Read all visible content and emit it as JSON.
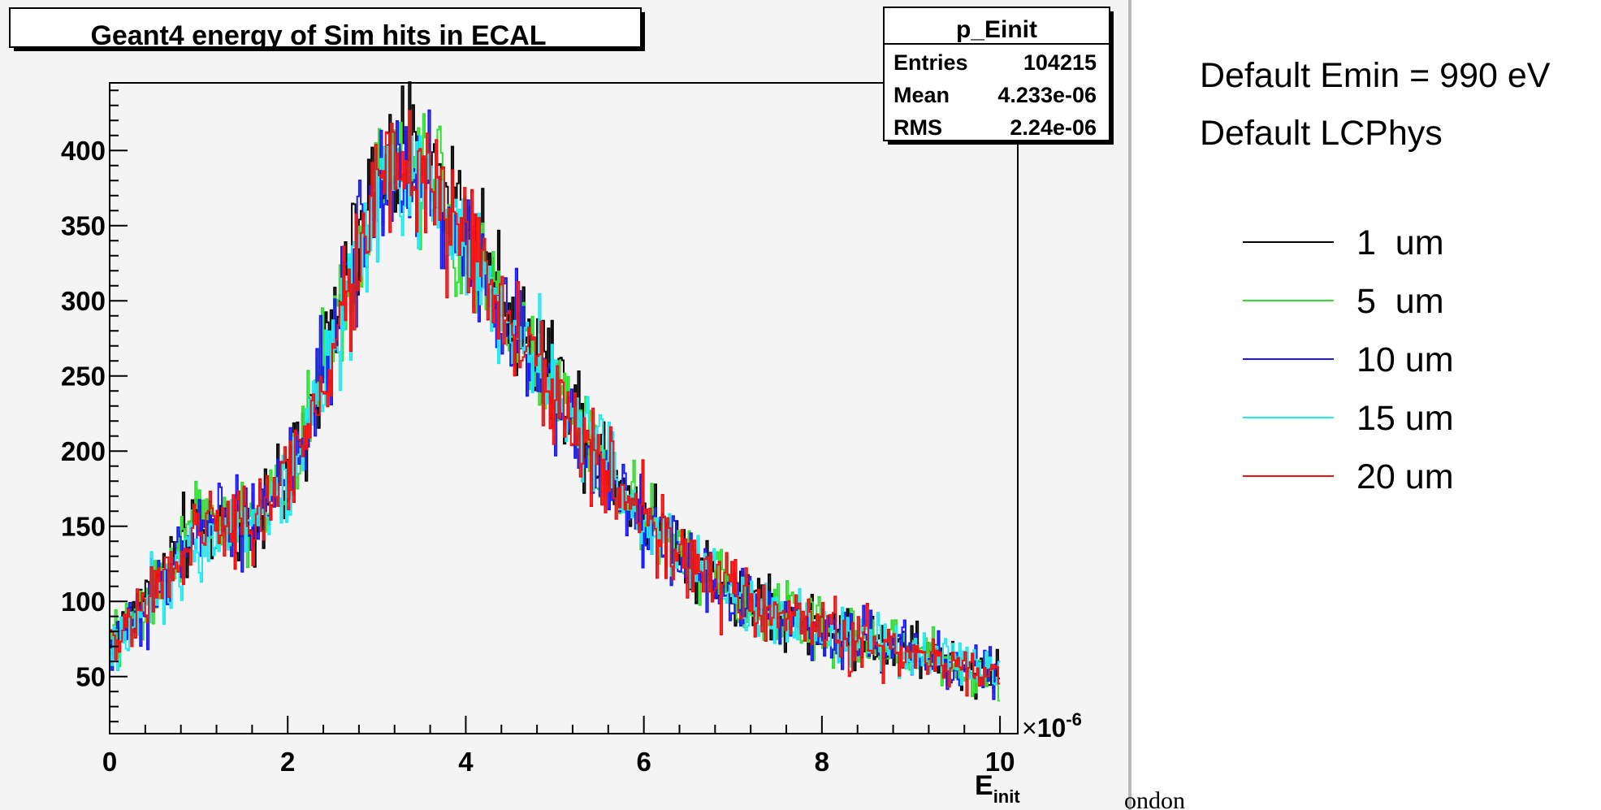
{
  "chart_data": {
    "type": "line",
    "title": "Geant4 energy of Sim hits in ECAL",
    "xlabel": "E",
    "xlabel_subscript": "init",
    "x_exponent_label": "10",
    "x_exponent_power": "-6",
    "xlim": [
      0,
      10.2
    ],
    "ylim": [
      12,
      445
    ],
    "x_ticks": [
      "0",
      "2",
      "4",
      "6",
      "8",
      "10"
    ],
    "y_ticks": [
      "50",
      "100",
      "150",
      "200",
      "250",
      "300",
      "350",
      "400"
    ],
    "grid": false,
    "stats_box": {
      "title": "p_Einit",
      "rows": [
        {
          "label": "Entries",
          "value": "104215"
        },
        {
          "label": "Mean",
          "value": "4.233e-06"
        },
        {
          "label": "RMS",
          "value": "2.24e-06"
        }
      ]
    },
    "x": [
      0,
      0.5,
      1,
      1.5,
      2,
      2.5,
      3,
      3.5,
      4,
      4.5,
      5,
      5.5,
      6,
      6.5,
      7,
      7.5,
      8,
      8.5,
      9,
      9.5,
      10
    ],
    "series": [
      {
        "name": "1  um",
        "color": "#000000",
        "values": [
          70,
          112,
          152,
          150,
          182,
          278,
          382,
          398,
          360,
          292,
          252,
          200,
          160,
          130,
          107,
          94,
          84,
          75,
          68,
          58,
          52
        ]
      },
      {
        "name": "5  um",
        "color": "#33dd33",
        "values": [
          68,
          108,
          156,
          150,
          180,
          272,
          378,
          388,
          338,
          283,
          242,
          196,
          157,
          128,
          105,
          92,
          82,
          74,
          67,
          58,
          51
        ]
      },
      {
        "name": "10 um",
        "color": "#1a1aee",
        "values": [
          67,
          106,
          150,
          148,
          178,
          270,
          372,
          388,
          336,
          281,
          240,
          195,
          156,
          127,
          104,
          91,
          81,
          73,
          66,
          57,
          50
        ]
      },
      {
        "name": "15 um",
        "color": "#22e8f0",
        "values": [
          66,
          104,
          148,
          146,
          176,
          268,
          370,
          394,
          340,
          282,
          240,
          194,
          155,
          126,
          104,
          91,
          81,
          73,
          66,
          57,
          50
        ]
      },
      {
        "name": "20 um",
        "color": "#ee1111",
        "values": [
          68,
          106,
          150,
          148,
          178,
          268,
          376,
          388,
          336,
          280,
          238,
          193,
          154,
          125,
          103,
          90,
          80,
          72,
          65,
          56,
          49
        ]
      }
    ]
  },
  "annotations": {
    "line1": "Default Emin = 990 eV",
    "line2": "Default LCPhys",
    "footer_fragment": "ondon"
  }
}
